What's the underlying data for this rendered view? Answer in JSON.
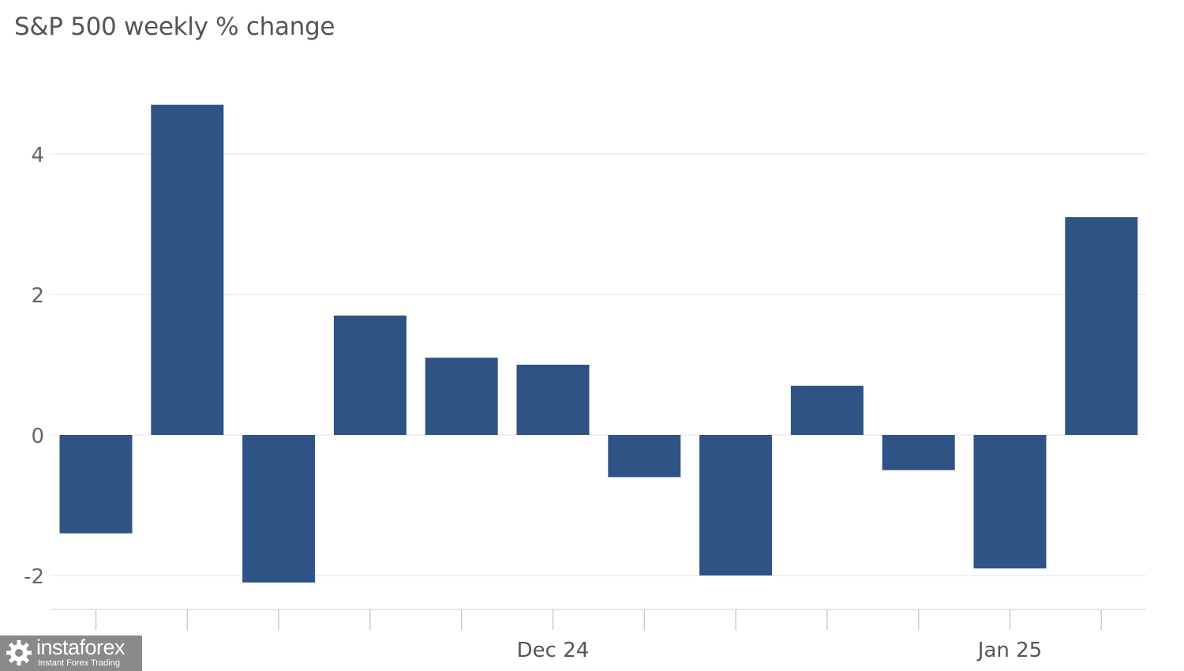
{
  "chart_data": {
    "type": "bar",
    "title": "S&P 500 weekly % change",
    "xlabel": "",
    "ylabel": "",
    "x_tick_labels": [
      "",
      "",
      "",
      "",
      "",
      "Dec 24",
      "",
      "",
      "",
      "",
      "Jan 25",
      "",
      ""
    ],
    "y_ticks": [
      -2,
      0,
      2,
      4
    ],
    "ylim": [
      -2.5,
      5.0
    ],
    "grid": true,
    "series": [
      {
        "values": [
          -1.4,
          4.7,
          -2.1,
          1.7,
          1.1,
          1.0,
          -0.6,
          -2.0,
          0.7,
          -0.5,
          -1.9,
          3.1
        ]
      }
    ],
    "bar_color": "#2f5385"
  },
  "watermark": {
    "brand": "instaforex",
    "tagline": "Instant Forex Trading"
  }
}
